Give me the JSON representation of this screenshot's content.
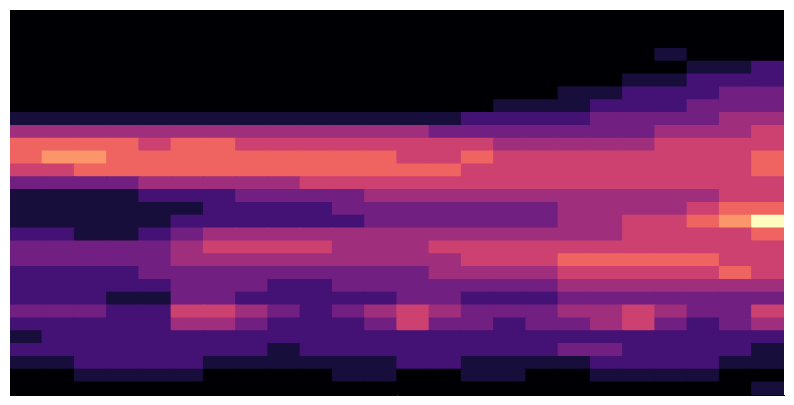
{
  "chart_data": {
    "type": "heatmap",
    "xlim": [
      0,
      24
    ],
    "ylim": [
      0,
      30
    ],
    "grid": false,
    "tick_labels": false,
    "cells": [
      [
        0,
        0,
        0,
        0,
        0,
        0,
        0,
        0,
        0,
        0,
        0,
        0,
        0,
        0,
        0,
        0,
        0,
        0,
        0,
        0,
        0,
        0,
        0,
        1
      ],
      [
        0,
        0,
        1,
        1,
        1,
        1,
        0,
        0,
        0,
        0,
        1,
        1,
        0,
        0,
        1,
        1,
        0,
        0,
        1,
        1,
        1,
        1,
        0,
        0
      ],
      [
        1,
        1,
        2,
        2,
        2,
        2,
        1,
        1,
        1,
        1,
        1,
        1,
        2,
        2,
        1,
        1,
        1,
        1,
        2,
        2,
        2,
        2,
        1,
        1
      ],
      [
        2,
        2,
        2,
        2,
        2,
        2,
        2,
        2,
        1,
        2,
        2,
        2,
        2,
        2,
        2,
        2,
        2,
        3,
        3,
        2,
        2,
        2,
        2,
        1
      ],
      [
        1,
        2,
        2,
        2,
        2,
        2,
        2,
        2,
        2,
        2,
        2,
        2,
        2,
        2,
        2,
        2,
        2,
        2,
        2,
        2,
        2,
        2,
        2,
        2
      ],
      [
        2,
        2,
        2,
        2,
        2,
        4,
        4,
        3,
        2,
        2,
        2,
        3,
        5,
        3,
        3,
        2,
        3,
        3,
        4,
        5,
        3,
        2,
        3,
        4
      ],
      [
        3,
        3,
        3,
        2,
        2,
        5,
        5,
        4,
        3,
        2,
        3,
        4,
        5,
        4,
        3,
        3,
        3,
        4,
        4,
        5,
        4,
        3,
        3,
        5
      ],
      [
        2,
        2,
        2,
        1,
        1,
        3,
        3,
        2,
        2,
        2,
        2,
        2,
        3,
        3,
        2,
        2,
        2,
        3,
        3,
        3,
        3,
        3,
        3,
        3
      ],
      [
        2,
        2,
        2,
        2,
        2,
        3,
        3,
        3,
        2,
        2,
        3,
        3,
        3,
        3,
        3,
        3,
        3,
        4,
        4,
        4,
        4,
        4,
        4,
        4
      ],
      [
        2,
        2,
        2,
        2,
        3,
        3,
        3,
        3,
        3,
        3,
        3,
        3,
        3,
        4,
        4,
        4,
        4,
        5,
        5,
        5,
        5,
        5,
        6,
        5
      ],
      [
        3,
        3,
        3,
        3,
        3,
        4,
        4,
        4,
        4,
        4,
        4,
        4,
        4,
        4,
        5,
        5,
        5,
        6,
        6,
        6,
        6,
        6,
        5,
        5
      ],
      [
        3,
        3,
        3,
        3,
        3,
        4,
        5,
        5,
        5,
        5,
        4,
        4,
        4,
        5,
        5,
        5,
        5,
        5,
        5,
        5,
        5,
        5,
        5,
        5
      ],
      [
        2,
        2,
        1,
        1,
        2,
        3,
        4,
        4,
        4,
        4,
        4,
        4,
        4,
        4,
        4,
        4,
        4,
        4,
        4,
        5,
        5,
        5,
        5,
        6
      ],
      [
        1,
        1,
        1,
        1,
        1,
        2,
        2,
        2,
        2,
        2,
        2,
        3,
        3,
        3,
        3,
        3,
        3,
        4,
        4,
        5,
        5,
        6,
        7,
        9
      ],
      [
        1,
        1,
        1,
        1,
        1,
        1,
        2,
        2,
        2,
        2,
        3,
        3,
        3,
        3,
        3,
        3,
        3,
        4,
        4,
        4,
        4,
        5,
        6,
        6
      ],
      [
        1,
        1,
        1,
        1,
        2,
        2,
        2,
        3,
        3,
        3,
        3,
        4,
        4,
        4,
        4,
        4,
        4,
        4,
        4,
        4,
        4,
        4,
        5,
        5
      ],
      [
        3,
        3,
        3,
        3,
        4,
        4,
        4,
        4,
        4,
        5,
        5,
        5,
        5,
        5,
        5,
        5,
        5,
        5,
        5,
        5,
        5,
        5,
        5,
        5
      ],
      [
        5,
        5,
        6,
        6,
        6,
        6,
        6,
        6,
        6,
        6,
        6,
        6,
        6,
        6,
        5,
        5,
        5,
        5,
        5,
        5,
        5,
        5,
        5,
        6
      ],
      [
        6,
        7,
        7,
        6,
        6,
        6,
        6,
        6,
        6,
        6,
        6,
        6,
        5,
        5,
        6,
        5,
        5,
        5,
        5,
        5,
        5,
        5,
        5,
        6
      ],
      [
        6,
        6,
        6,
        6,
        5,
        6,
        6,
        5,
        5,
        5,
        5,
        5,
        5,
        5,
        5,
        4,
        4,
        4,
        4,
        4,
        5,
        5,
        5,
        5
      ],
      [
        4,
        4,
        4,
        4,
        4,
        4,
        4,
        4,
        4,
        4,
        4,
        4,
        4,
        3,
        3,
        3,
        3,
        3,
        3,
        3,
        4,
        4,
        4,
        5
      ],
      [
        1,
        1,
        1,
        1,
        1,
        1,
        1,
        1,
        1,
        1,
        1,
        1,
        1,
        1,
        2,
        2,
        2,
        2,
        3,
        3,
        3,
        3,
        4,
        4
      ],
      [
        0,
        0,
        0,
        0,
        0,
        0,
        0,
        0,
        0,
        0,
        0,
        0,
        0,
        0,
        0,
        1,
        1,
        1,
        2,
        2,
        2,
        3,
        3,
        3
      ],
      [
        0,
        0,
        0,
        0,
        0,
        0,
        0,
        0,
        0,
        0,
        0,
        0,
        0,
        0,
        0,
        0,
        0,
        1,
        1,
        2,
        2,
        2,
        3,
        3
      ],
      [
        0,
        0,
        0,
        0,
        0,
        0,
        0,
        0,
        0,
        0,
        0,
        0,
        0,
        0,
        0,
        0,
        0,
        0,
        0,
        1,
        1,
        2,
        2,
        2
      ],
      [
        0,
        0,
        0,
        0,
        0,
        0,
        0,
        0,
        0,
        0,
        0,
        0,
        0,
        0,
        0,
        0,
        0,
        0,
        0,
        0,
        0,
        1,
        1,
        2
      ],
      [
        0,
        0,
        0,
        0,
        0,
        0,
        0,
        0,
        0,
        0,
        0,
        0,
        0,
        0,
        0,
        0,
        0,
        0,
        0,
        0,
        1,
        0,
        0,
        0
      ],
      [
        0,
        0,
        0,
        0,
        0,
        0,
        0,
        0,
        0,
        0,
        0,
        0,
        0,
        0,
        0,
        0,
        0,
        0,
        0,
        0,
        0,
        0,
        0,
        0
      ],
      [
        0,
        0,
        0,
        0,
        0,
        0,
        0,
        0,
        0,
        0,
        0,
        0,
        0,
        0,
        0,
        0,
        0,
        0,
        0,
        0,
        0,
        0,
        0,
        0
      ],
      [
        0,
        0,
        0,
        0,
        0,
        0,
        0,
        0,
        0,
        0,
        0,
        0,
        0,
        0,
        0,
        0,
        0,
        0,
        0,
        0,
        0,
        0,
        0,
        0
      ]
    ]
  }
}
